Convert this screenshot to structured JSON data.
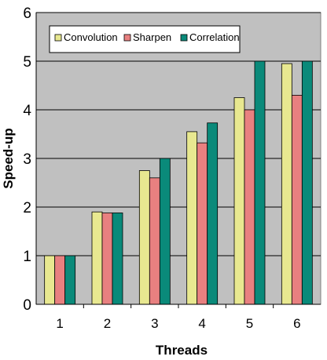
{
  "chart_data": {
    "type": "bar",
    "title": "",
    "xlabel": "Threads",
    "ylabel": "Speed-up",
    "categories": [
      "1",
      "2",
      "3",
      "4",
      "5",
      "6"
    ],
    "series": [
      {
        "name": "Convolution",
        "color": "#e8e890",
        "values": [
          1.0,
          1.9,
          2.75,
          3.55,
          4.25,
          4.95
        ]
      },
      {
        "name": "Sharpen",
        "color": "#e88080",
        "values": [
          1.0,
          1.88,
          2.6,
          3.32,
          4.0,
          4.3
        ]
      },
      {
        "name": "Correlation",
        "color": "#0a8a7a",
        "values": [
          1.0,
          1.88,
          3.0,
          3.73,
          5.0,
          5.0
        ]
      }
    ],
    "ylim": [
      0,
      6
    ],
    "yticks": [
      "0",
      "1",
      "2",
      "3",
      "4",
      "5",
      "6"
    ],
    "grid": true,
    "plot_background": "#c0c0c0",
    "legend_position": "top-left"
  }
}
